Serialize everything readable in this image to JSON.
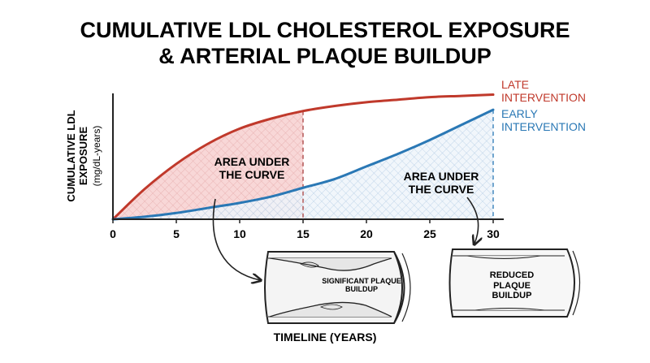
{
  "chart_data": {
    "type": "line",
    "title": [
      "CUMULATIVE LDL CHOLESTEROL EXPOSURE",
      "& ARTERIAL PLAQUE BUILDUP"
    ],
    "y_label": [
      "CUMULATIVE LDL",
      "EXPOSURE",
      "(mg/dL-years)"
    ],
    "x_label": "TIMELINE (YEARS)",
    "x": [
      0,
      2.5,
      5,
      7.5,
      10,
      12.5,
      15,
      17.5,
      20,
      22.5,
      25,
      27.5,
      30
    ],
    "series": [
      {
        "name": "LATE INTERVENTION",
        "color": "#c0392b",
        "values": [
          0,
          24,
          44,
          60,
          72,
          80,
          86,
          90,
          93,
          95,
          97,
          98,
          99
        ]
      },
      {
        "name": "EARLY INTERVENTION",
        "color": "#2a78b5",
        "values": [
          0,
          2,
          5,
          9,
          13,
          18,
          25,
          32,
          42,
          52,
          63,
          75,
          87
        ]
      }
    ],
    "xlim": [
      0,
      30
    ],
    "xticks": [
      0,
      5,
      10,
      15,
      20,
      25,
      30
    ],
    "ylim": [
      0,
      100
    ],
    "markers_x": [
      15,
      30
    ],
    "annotations": [
      "AREA UNDER THE CURVE",
      "AREA UNDER THE CURVE",
      "SIGNIFICANT PLAQUE BUILDUP",
      "REDUCED PLAQUE BUILDUP"
    ]
  }
}
